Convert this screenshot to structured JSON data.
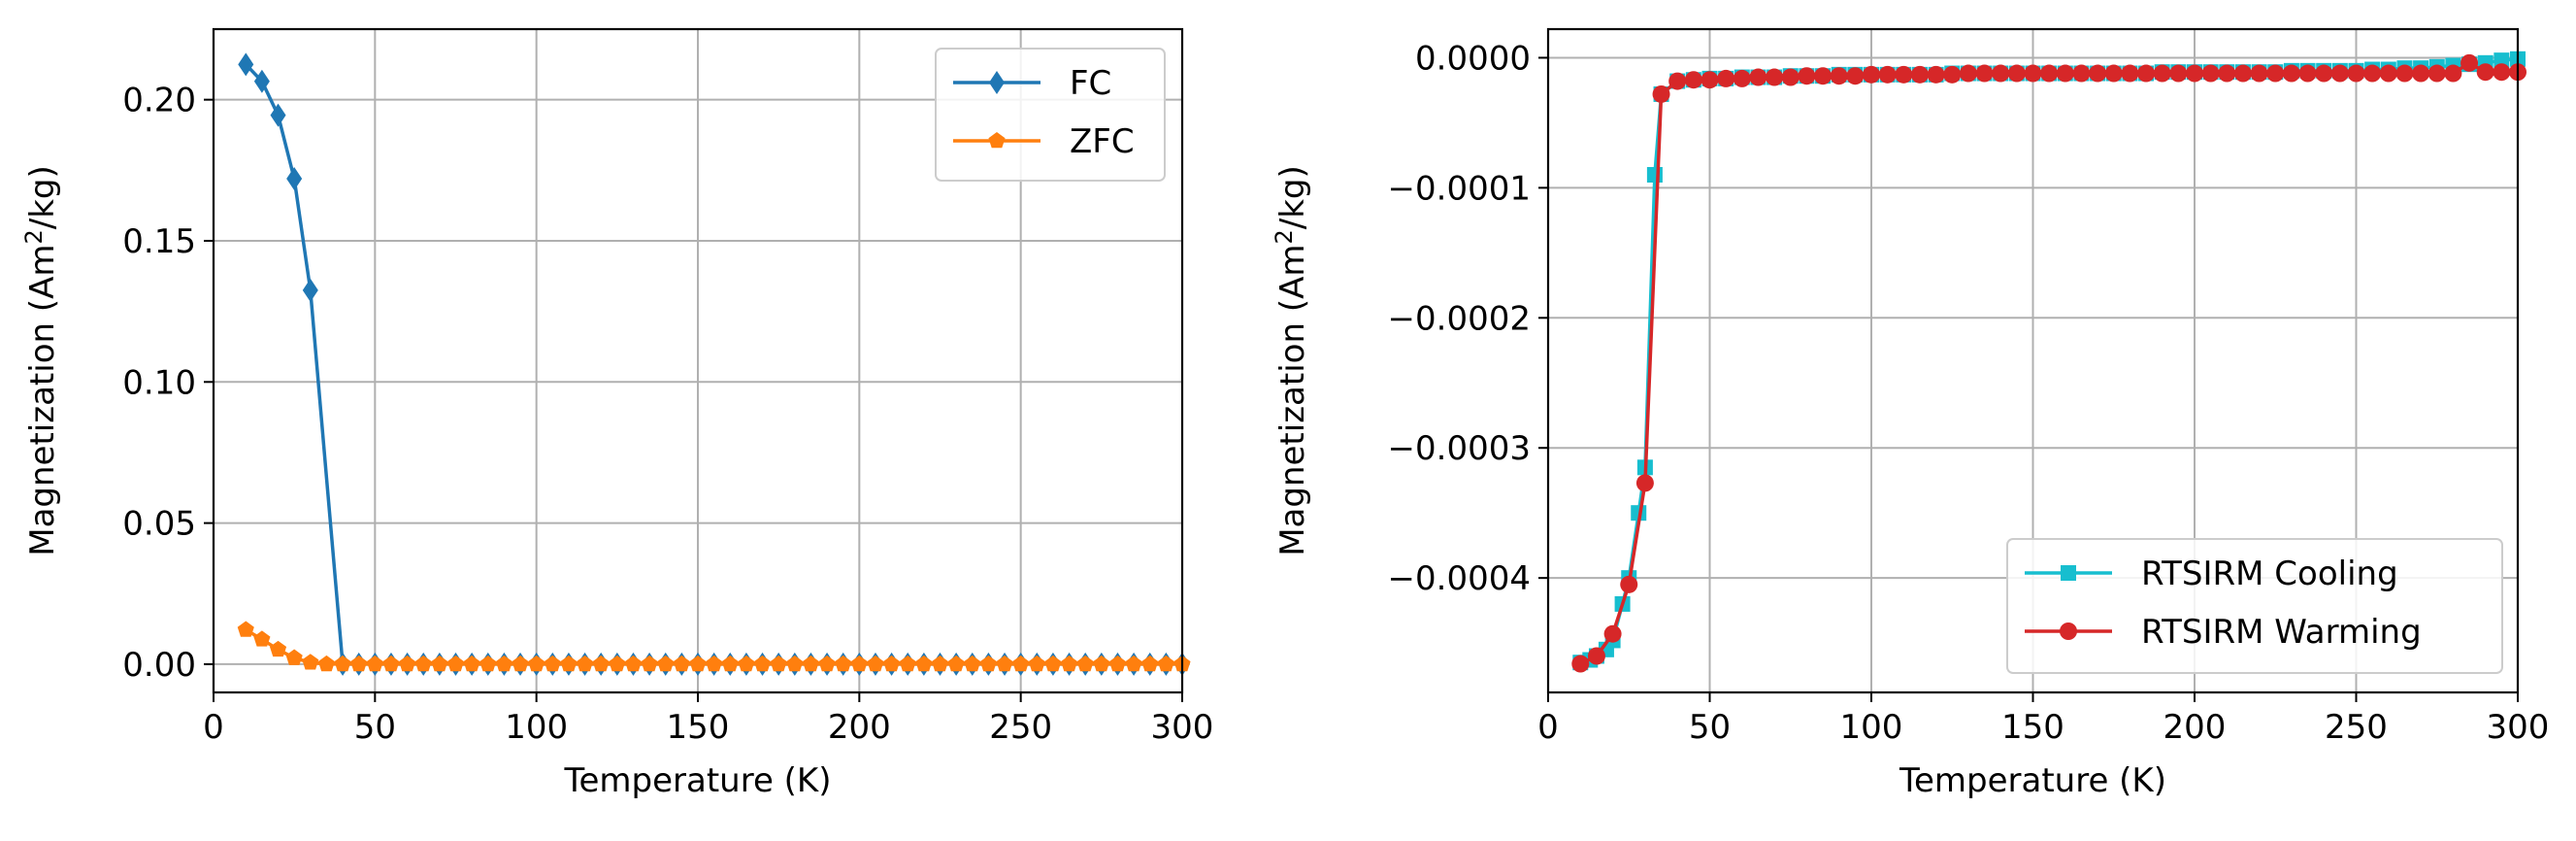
{
  "chart_data": [
    {
      "type": "line",
      "xlabel": "Temperature (K)",
      "ylabel_text": "Magnetization (Am",
      "ylabel_sup": "2",
      "ylabel_tail": "/kg)",
      "xlim": [
        0,
        300
      ],
      "ylim": [
        -0.01,
        0.225
      ],
      "xticks": [
        0,
        50,
        100,
        150,
        200,
        250,
        300
      ],
      "yticks": [
        0.0,
        0.05,
        0.1,
        0.15,
        0.2
      ],
      "ytick_labels": [
        "0.00",
        "0.05",
        "0.10",
        "0.15",
        "0.20"
      ],
      "grid": true,
      "legend_position": "upper right",
      "series": [
        {
          "name": "FC",
          "color": "#1f77b4",
          "marker": "diamond",
          "x": [
            10,
            15,
            20,
            25,
            30,
            35,
            40,
            45,
            50,
            55,
            60,
            65,
            70,
            75,
            80,
            85,
            90,
            95,
            100,
            105,
            110,
            115,
            120,
            125,
            130,
            135,
            140,
            145,
            150,
            155,
            160,
            165,
            170,
            175,
            180,
            185,
            190,
            195,
            200,
            205,
            210,
            215,
            220,
            225,
            230,
            235,
            240,
            245,
            250,
            255,
            260,
            265,
            270,
            275,
            280,
            285,
            290,
            295,
            300
          ],
          "y": [
            0.2125,
            0.2065,
            0.1945,
            0.172,
            0.1325,
            0.066,
            0.0,
            0.0,
            0.0,
            0.0,
            0.0,
            0.0,
            0.0,
            0.0,
            0.0,
            0.0,
            0.0,
            0.0,
            0.0,
            0.0,
            0.0,
            0.0,
            0.0,
            0.0,
            0.0,
            0.0,
            0.0,
            0.0,
            0.0,
            0.0,
            0.0,
            0.0,
            0.0,
            0.0,
            0.0,
            0.0,
            0.0,
            0.0,
            0.0,
            0.0,
            0.0,
            0.0,
            0.0,
            0.0,
            0.0,
            0.0,
            0.0,
            0.0,
            0.0,
            0.0,
            0.0,
            0.0,
            0.0,
            0.0,
            0.0,
            0.0,
            0.0,
            0.0,
            0.0
          ],
          "marker_skip_index": [
            5
          ]
        },
        {
          "name": "ZFC",
          "color": "#ff7f0e",
          "marker": "pentagon",
          "x": [
            10,
            15,
            20,
            25,
            30,
            35,
            40,
            45,
            50,
            55,
            60,
            65,
            70,
            75,
            80,
            85,
            90,
            95,
            100,
            105,
            110,
            115,
            120,
            125,
            130,
            135,
            140,
            145,
            150,
            155,
            160,
            165,
            170,
            175,
            180,
            185,
            190,
            195,
            200,
            205,
            210,
            215,
            220,
            225,
            230,
            235,
            240,
            245,
            250,
            255,
            260,
            265,
            270,
            275,
            280,
            285,
            290,
            295,
            300
          ],
          "y": [
            0.0122,
            0.0088,
            0.0052,
            0.0022,
            0.0006,
            0.0,
            0.0,
            0.0,
            0.0,
            0.0,
            0.0,
            0.0,
            0.0,
            0.0,
            0.0,
            0.0,
            0.0,
            0.0,
            0.0,
            0.0,
            0.0,
            0.0,
            0.0,
            0.0,
            0.0,
            0.0,
            0.0,
            0.0,
            0.0,
            0.0,
            0.0,
            0.0,
            0.0,
            0.0,
            0.0,
            0.0,
            0.0,
            0.0,
            0.0,
            0.0,
            0.0,
            0.0,
            0.0,
            0.0,
            0.0,
            0.0,
            0.0,
            0.0,
            0.0,
            0.0,
            0.0,
            0.0,
            0.0,
            0.0,
            0.0,
            0.0,
            0.0,
            0.0,
            0.0
          ]
        }
      ]
    },
    {
      "type": "line",
      "xlabel": "Temperature (K)",
      "ylabel_text": "Magnetization (Am",
      "ylabel_sup": "2",
      "ylabel_tail": "/kg)",
      "xlim": [
        0,
        300
      ],
      "ylim": [
        -0.000488,
        2.2e-05
      ],
      "xticks": [
        0,
        50,
        100,
        150,
        200,
        250,
        300
      ],
      "yticks": [
        0.0,
        -0.0001,
        -0.0002,
        -0.0003,
        -0.0004
      ],
      "ytick_labels": [
        "0.0000",
        "−0.0001",
        "−0.0002",
        "−0.0003",
        "−0.0004"
      ],
      "grid": true,
      "legend_position": "lower right",
      "series": [
        {
          "name": "RTSIRM Cooling",
          "color": "#17becf",
          "marker": "square",
          "x": [
            300,
            295,
            290,
            285,
            280,
            275,
            270,
            265,
            260,
            255,
            250,
            245,
            240,
            235,
            230,
            225,
            220,
            215,
            210,
            205,
            200,
            195,
            190,
            185,
            180,
            175,
            170,
            165,
            160,
            155,
            150,
            145,
            140,
            135,
            130,
            125,
            120,
            115,
            110,
            105,
            100,
            95,
            90,
            85,
            80,
            75,
            70,
            65,
            60,
            55,
            50,
            45,
            40,
            35,
            33,
            30,
            28,
            25,
            23,
            20,
            18,
            15,
            13,
            10
          ],
          "y": [
            -1e-06,
            -2e-06,
            -4e-06,
            -5e-06,
            -6e-06,
            -7e-06,
            -8e-06,
            -8e-06,
            -9e-06,
            -9e-06,
            -1e-05,
            -1e-05,
            -1e-05,
            -1e-05,
            -1e-05,
            -1.1e-05,
            -1.1e-05,
            -1.1e-05,
            -1.1e-05,
            -1.1e-05,
            -1.1e-05,
            -1.1e-05,
            -1.1e-05,
            -1.2e-05,
            -1.2e-05,
            -1.2e-05,
            -1.2e-05,
            -1.2e-05,
            -1.2e-05,
            -1.2e-05,
            -1.2e-05,
            -1.2e-05,
            -1.2e-05,
            -1.2e-05,
            -1.2e-05,
            -1.2e-05,
            -1.3e-05,
            -1.3e-05,
            -1.3e-05,
            -1.3e-05,
            -1.3e-05,
            -1.3e-05,
            -1.3e-05,
            -1.4e-05,
            -1.4e-05,
            -1.4e-05,
            -1.5e-05,
            -1.5e-05,
            -1.5e-05,
            -1.6e-05,
            -1.6e-05,
            -1.7e-05,
            -1.8e-05,
            -2.8e-05,
            -9e-05,
            -0.000315,
            -0.00035,
            -0.0004,
            -0.00042,
            -0.000448,
            -0.000455,
            -0.00046,
            -0.000463,
            -0.000465
          ]
        },
        {
          "name": "RTSIRM Warming",
          "color": "#d62728",
          "marker": "circle",
          "x": [
            10,
            15,
            20,
            25,
            30,
            35,
            40,
            45,
            50,
            55,
            60,
            65,
            70,
            75,
            80,
            85,
            90,
            95,
            100,
            105,
            110,
            115,
            120,
            125,
            130,
            135,
            140,
            145,
            150,
            155,
            160,
            165,
            170,
            175,
            180,
            185,
            190,
            195,
            200,
            205,
            210,
            215,
            220,
            225,
            230,
            235,
            240,
            245,
            250,
            255,
            260,
            265,
            270,
            275,
            280,
            285,
            290,
            295,
            300
          ],
          "y": [
            -0.000466,
            -0.00046,
            -0.000443,
            -0.000405,
            -0.000327,
            -2.8e-05,
            -1.8e-05,
            -1.7e-05,
            -1.7e-05,
            -1.6e-05,
            -1.6e-05,
            -1.5e-05,
            -1.5e-05,
            -1.5e-05,
            -1.4e-05,
            -1.4e-05,
            -1.4e-05,
            -1.4e-05,
            -1.3e-05,
            -1.3e-05,
            -1.3e-05,
            -1.3e-05,
            -1.3e-05,
            -1.3e-05,
            -1.2e-05,
            -1.2e-05,
            -1.2e-05,
            -1.2e-05,
            -1.2e-05,
            -1.2e-05,
            -1.2e-05,
            -1.2e-05,
            -1.2e-05,
            -1.2e-05,
            -1.2e-05,
            -1.2e-05,
            -1.2e-05,
            -1.2e-05,
            -1.2e-05,
            -1.2e-05,
            -1.2e-05,
            -1.2e-05,
            -1.2e-05,
            -1.2e-05,
            -1.2e-05,
            -1.2e-05,
            -1.2e-05,
            -1.2e-05,
            -1.2e-05,
            -1.2e-05,
            -1.2e-05,
            -1.2e-05,
            -1.2e-05,
            -1.2e-05,
            -1.2e-05,
            -4e-06,
            -1.1e-05,
            -1.1e-05,
            -1.1e-05
          ]
        }
      ]
    }
  ]
}
